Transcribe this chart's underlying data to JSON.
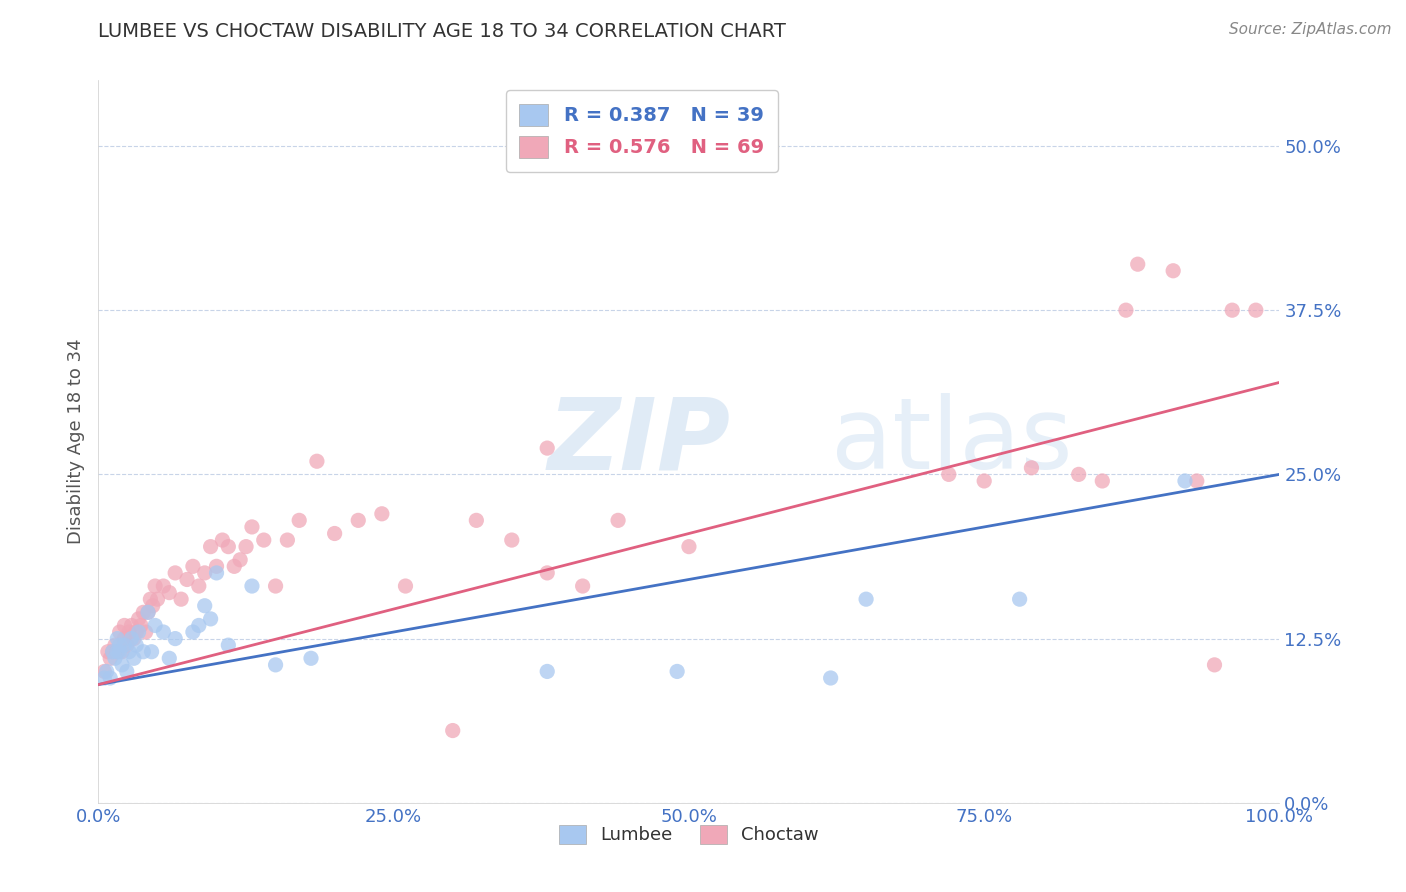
{
  "title": "LUMBEE VS CHOCTAW DISABILITY AGE 18 TO 34 CORRELATION CHART",
  "source_text": "Source: ZipAtlas.com",
  "ylabel": "Disability Age 18 to 34",
  "xlim": [
    0.0,
    1.0
  ],
  "ylim": [
    0.0,
    0.55
  ],
  "xticks": [
    0.0,
    0.25,
    0.5,
    0.75,
    1.0
  ],
  "xticklabels": [
    "0.0%",
    "25.0%",
    "50.0%",
    "75.0%",
    "100.0%"
  ],
  "yticks": [
    0.0,
    0.125,
    0.25,
    0.375,
    0.5
  ],
  "yticklabels": [
    "0.0%",
    "12.5%",
    "25.0%",
    "37.5%",
    "50.0%"
  ],
  "lumbee_R": 0.387,
  "lumbee_N": 39,
  "choctaw_R": 0.576,
  "choctaw_N": 69,
  "lumbee_color": "#a8c8f0",
  "choctaw_color": "#f0a8b8",
  "lumbee_line_color": "#4472c4",
  "choctaw_line_color": "#e06080",
  "watermark_zip": "ZIP",
  "watermark_atlas": "atlas",
  "background_color": "#ffffff",
  "grid_color": "#c8d4e8",
  "title_color": "#2d4a7a",
  "tick_color": "#4472c4",
  "lumbee_scatter_x": [
    0.005,
    0.007,
    0.01,
    0.012,
    0.014,
    0.016,
    0.016,
    0.018,
    0.018,
    0.02,
    0.022,
    0.024,
    0.026,
    0.028,
    0.03,
    0.032,
    0.034,
    0.038,
    0.042,
    0.045,
    0.048,
    0.055,
    0.06,
    0.065,
    0.08,
    0.085,
    0.09,
    0.095,
    0.1,
    0.11,
    0.13,
    0.15,
    0.18,
    0.38,
    0.49,
    0.62,
    0.65,
    0.78,
    0.92
  ],
  "lumbee_scatter_y": [
    0.095,
    0.1,
    0.095,
    0.115,
    0.11,
    0.115,
    0.125,
    0.115,
    0.12,
    0.105,
    0.12,
    0.1,
    0.115,
    0.125,
    0.11,
    0.12,
    0.13,
    0.115,
    0.145,
    0.115,
    0.135,
    0.13,
    0.11,
    0.125,
    0.13,
    0.135,
    0.15,
    0.14,
    0.175,
    0.12,
    0.165,
    0.105,
    0.11,
    0.1,
    0.1,
    0.095,
    0.155,
    0.155,
    0.245
  ],
  "choctaw_scatter_x": [
    0.005,
    0.008,
    0.01,
    0.012,
    0.014,
    0.016,
    0.018,
    0.02,
    0.022,
    0.022,
    0.024,
    0.026,
    0.028,
    0.03,
    0.032,
    0.034,
    0.036,
    0.038,
    0.04,
    0.042,
    0.044,
    0.046,
    0.048,
    0.05,
    0.055,
    0.06,
    0.065,
    0.07,
    0.075,
    0.08,
    0.085,
    0.09,
    0.095,
    0.1,
    0.105,
    0.11,
    0.115,
    0.12,
    0.125,
    0.13,
    0.14,
    0.15,
    0.16,
    0.17,
    0.185,
    0.2,
    0.22,
    0.24,
    0.26,
    0.3,
    0.32,
    0.35,
    0.38,
    0.41,
    0.44,
    0.38,
    0.5,
    0.72,
    0.75,
    0.79,
    0.83,
    0.85,
    0.87,
    0.88,
    0.91,
    0.93,
    0.945,
    0.96,
    0.98
  ],
  "choctaw_scatter_y": [
    0.1,
    0.115,
    0.11,
    0.115,
    0.12,
    0.115,
    0.13,
    0.115,
    0.125,
    0.135,
    0.12,
    0.13,
    0.135,
    0.125,
    0.13,
    0.14,
    0.135,
    0.145,
    0.13,
    0.145,
    0.155,
    0.15,
    0.165,
    0.155,
    0.165,
    0.16,
    0.175,
    0.155,
    0.17,
    0.18,
    0.165,
    0.175,
    0.195,
    0.18,
    0.2,
    0.195,
    0.18,
    0.185,
    0.195,
    0.21,
    0.2,
    0.165,
    0.2,
    0.215,
    0.26,
    0.205,
    0.215,
    0.22,
    0.165,
    0.055,
    0.215,
    0.2,
    0.175,
    0.165,
    0.215,
    0.27,
    0.195,
    0.25,
    0.245,
    0.255,
    0.25,
    0.245,
    0.375,
    0.41,
    0.405,
    0.245,
    0.105,
    0.375,
    0.375
  ]
}
